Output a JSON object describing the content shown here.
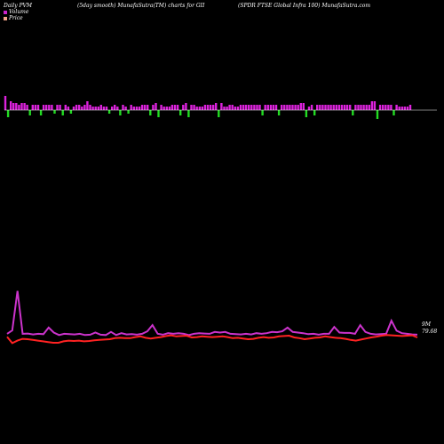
{
  "header": {
    "left": "Daily PVM",
    "center": "(5day smooth) MunafaSutra(TM) charts for GII",
    "right": "(SPDR FTSE Global Infra  100) MunafaSutra.com"
  },
  "legend": [
    {
      "label": "Volume",
      "color": "#cc22cc"
    },
    {
      "label": "Price",
      "color": "#f4a58a"
    }
  ],
  "colors": {
    "pvm": "#cc33cc",
    "price": "#ff2222",
    "volume_up": "#dd22dd",
    "volume_down": "#22dd22",
    "baseline": "#ffffff"
  },
  "end_label": {
    "line1": "9M",
    "line2": "79.68"
  },
  "chart_data": [
    {
      "type": "bar",
      "series": [
        {
          "name": "Volume",
          "values": [
            8,
            -4,
            5,
            4,
            4,
            3,
            4,
            4,
            3,
            -3,
            3,
            3,
            3,
            -3,
            3,
            3,
            3,
            3,
            -2,
            3,
            3,
            -3,
            3,
            2,
            -2,
            2,
            3,
            3,
            2,
            3,
            5,
            3,
            2,
            2,
            2,
            3,
            2,
            2,
            -2,
            2,
            3,
            2,
            -3,
            3,
            2,
            -2,
            3,
            2,
            2,
            2,
            3,
            3,
            3,
            -3,
            3,
            4,
            -4,
            3,
            2,
            2,
            2,
            3,
            3,
            3,
            -3,
            3,
            4,
            -4,
            3,
            3,
            2,
            2,
            2,
            3,
            3,
            3,
            3,
            4,
            -4,
            4,
            2,
            2,
            3,
            3,
            2,
            2,
            3,
            3,
            3,
            3,
            3,
            3,
            3,
            3,
            -3,
            3,
            3,
            3,
            3,
            3,
            -3,
            3,
            3,
            3,
            3,
            3,
            3,
            3,
            4,
            4,
            -4,
            2,
            3,
            -3,
            3,
            3,
            3,
            3,
            3,
            3,
            3,
            3,
            3,
            3,
            3,
            3,
            3,
            -3,
            3,
            3,
            3,
            3,
            3,
            3,
            5,
            5,
            -5,
            3,
            3,
            3,
            3,
            3,
            -3,
            3,
            2,
            2,
            2,
            2,
            3
          ]
        }
      ]
    },
    {
      "type": "line",
      "series": [
        {
          "name": "PVM",
          "values": [
            0.3,
            0.85,
            7.2,
            0.3,
            0.35,
            0.2,
            0.3,
            0.25,
            1.3,
            0.5,
            0.1,
            0.3,
            0.25,
            0.2,
            0.3,
            0.1,
            0.15,
            0.5,
            0.15,
            0.1,
            0.6,
            0.1,
            0.4,
            0.2,
            0.25,
            0.15,
            0.3,
            0.7,
            1.7,
            0.3,
            0.15,
            0.4,
            0.3,
            0.4,
            0.3,
            0.1,
            0.3,
            0.4,
            0.35,
            0.3,
            0.6,
            0.5,
            0.6,
            0.3,
            0.25,
            0.2,
            0.3,
            0.2,
            0.4,
            0.3,
            0.4,
            0.6,
            0.55,
            0.7,
            1.3,
            0.6,
            0.5,
            0.4,
            0.25,
            0.3,
            0.15,
            0.3,
            0.3,
            1.4,
            0.5,
            0.45,
            0.45,
            0.3,
            1.7,
            0.6,
            0.3,
            0.2,
            0.25,
            0.3,
            2.4,
            0.8,
            0.4,
            0.3,
            0.2,
            0.15
          ]
        },
        {
          "name": "Price",
          "values": [
            79.68,
            77.9,
            78.6,
            79.1,
            79.0,
            78.8,
            78.6,
            78.4,
            78.2,
            78.0,
            78.0,
            78.4,
            78.6,
            78.5,
            78.6,
            78.4,
            78.5,
            78.7,
            78.8,
            78.9,
            79.0,
            79.3,
            79.4,
            79.3,
            79.3,
            79.6,
            79.8,
            79.4,
            79.2,
            79.4,
            79.6,
            79.9,
            80.1,
            79.8,
            79.9,
            80.0,
            79.5,
            79.6,
            79.8,
            79.7,
            79.6,
            79.7,
            79.8,
            79.6,
            79.3,
            79.4,
            79.2,
            79.0,
            79.1,
            79.4,
            79.6,
            79.4,
            79.5,
            79.8,
            79.9,
            80.0,
            79.5,
            79.3,
            79.0,
            79.2,
            79.4,
            79.5,
            79.8,
            79.6,
            79.4,
            79.3,
            79.1,
            78.8,
            78.6,
            78.9,
            79.2,
            79.5,
            79.7,
            80.0,
            80.2,
            80.1,
            80.0,
            79.9,
            80.0,
            80.1,
            79.5
          ]
        }
      ]
    }
  ]
}
